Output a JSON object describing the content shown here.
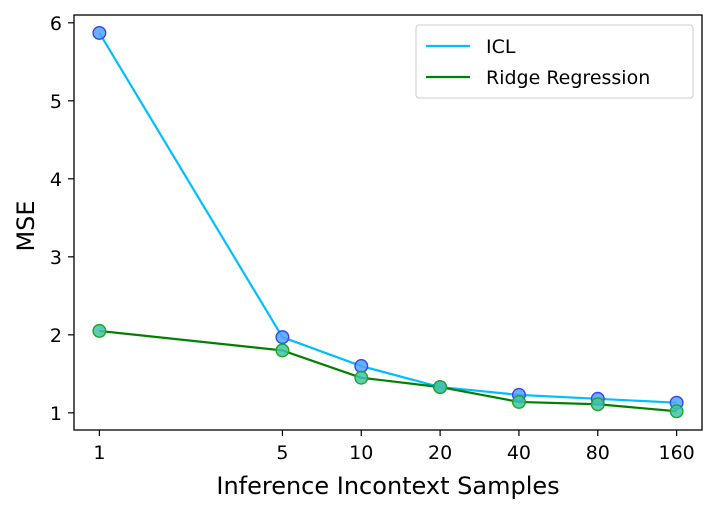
{
  "chart_data": {
    "type": "line",
    "title": "",
    "xlabel": "Inference Incontext Samples",
    "ylabel": "MSE",
    "x": [
      1,
      5,
      10,
      20,
      40,
      80,
      160
    ],
    "x_tick_labels": [
      "1",
      "5",
      "10",
      "20",
      "40",
      "80",
      "160"
    ],
    "x_scale": "log",
    "xlim": [
      0.8,
      200
    ],
    "ylim": [
      0.78,
      6.1
    ],
    "y_ticks": [
      1,
      2,
      3,
      4,
      5,
      6
    ],
    "y_tick_labels": [
      "1",
      "2",
      "3",
      "4",
      "5",
      "6"
    ],
    "grid": false,
    "legend_position": "top-right",
    "series": [
      {
        "name": "ICL",
        "values": [
          5.87,
          1.97,
          1.6,
          1.33,
          1.23,
          1.18,
          1.13
        ],
        "line_color": "#00bfff",
        "marker_fill": "#4fa3ff",
        "marker_edge": "#3344ee"
      },
      {
        "name": "Ridge Regression",
        "values": [
          2.05,
          1.8,
          1.45,
          1.33,
          1.14,
          1.11,
          1.02
        ],
        "line_color": "#008000",
        "marker_fill": "#3fc4a4",
        "marker_edge": "#22a22a"
      }
    ]
  }
}
